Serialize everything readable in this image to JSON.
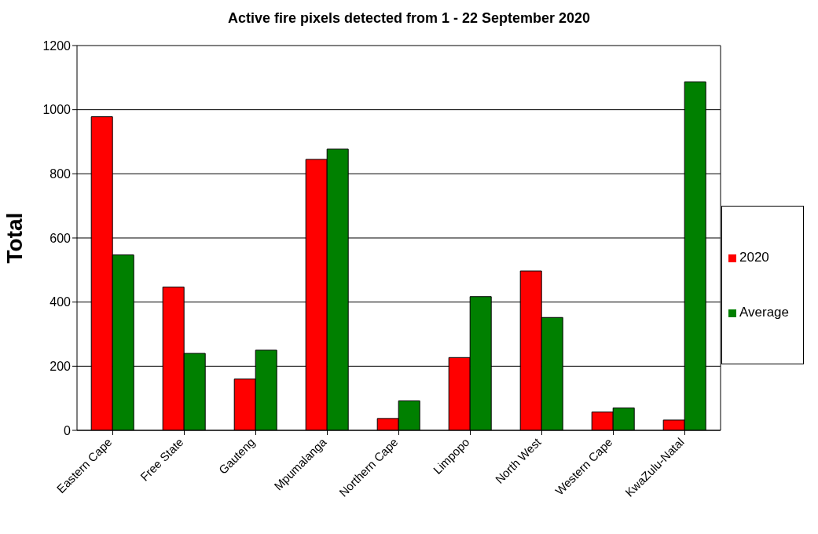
{
  "chart_data": {
    "type": "bar",
    "title": "Active fire pixels detected from 1 - 22 September 2020",
    "ylabel": "Total",
    "categories": [
      "Eastern Cape",
      "Free State",
      "Gauteng",
      "Mpumalanga",
      "Northern Cape",
      "Limpopo",
      "North West",
      "Western Cape",
      "KwaZulu-Natal"
    ],
    "series": [
      {
        "name": "2020",
        "color": "#ff0000",
        "values": [
          978,
          447,
          160,
          845,
          37,
          227,
          497,
          57,
          32
        ]
      },
      {
        "name": "Average",
        "color": "#008000",
        "values": [
          547,
          240,
          250,
          877,
          92,
          417,
          352,
          70,
          1087
        ]
      }
    ],
    "ylim": [
      0,
      1200
    ],
    "yticks": [
      0,
      200,
      400,
      600,
      800,
      1000,
      1200
    ],
    "grid": "y",
    "legend": "right"
  }
}
